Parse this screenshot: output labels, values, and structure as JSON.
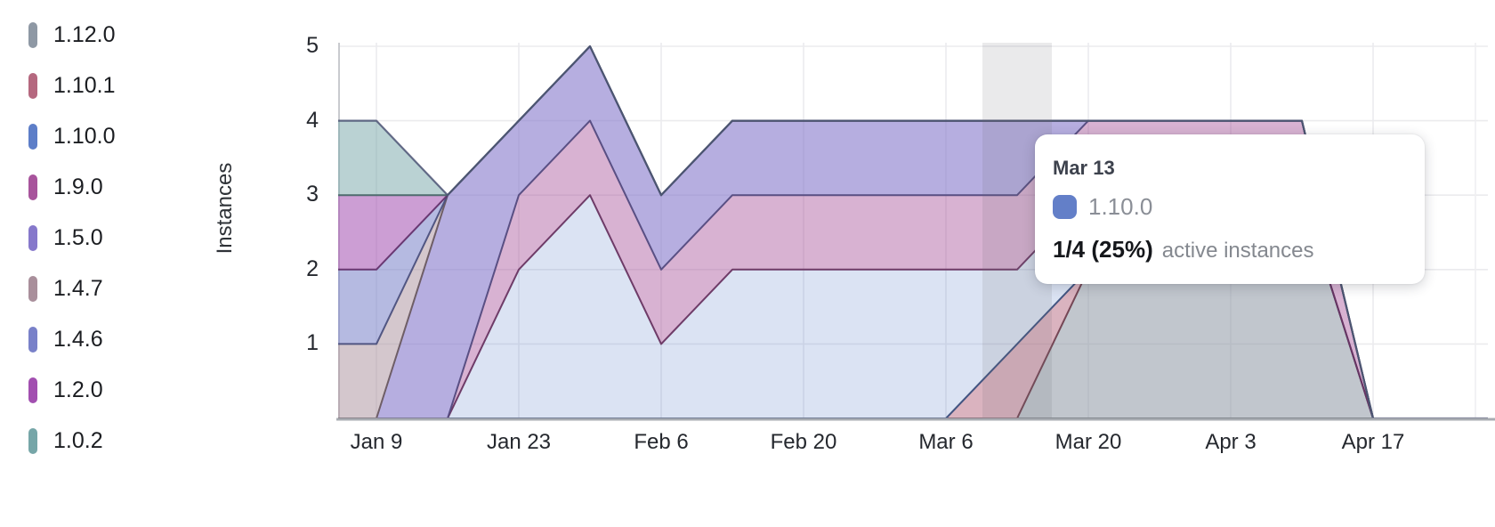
{
  "chart_data": {
    "type": "area",
    "stacked": true,
    "title": "",
    "xlabel": "",
    "ylabel": "Instances",
    "ylim": [
      0,
      5
    ],
    "y_ticks": [
      1,
      2,
      3,
      4,
      5
    ],
    "grid": true,
    "legend_position": "left",
    "x": [
      "Jan 5",
      "Jan 9",
      "Jan 16",
      "Jan 23",
      "Jan 30",
      "Feb 6",
      "Feb 13",
      "Feb 20",
      "Feb 27",
      "Mar 6",
      "Mar 13",
      "Mar 20",
      "Mar 27",
      "Apr 3",
      "Apr 10",
      "Apr 17"
    ],
    "x_tick_labels": [
      "Jan 9",
      "Jan 23",
      "Feb 6",
      "Feb 20",
      "Mar 6",
      "Mar 20",
      "Apr 3",
      "Apr 17"
    ],
    "stack_order_bottom_to_top": [
      "1.12.0",
      "1.10.1",
      "1.10.0",
      "1.9.0",
      "1.5.0",
      "1.4.7",
      "1.4.6",
      "1.2.0",
      "1.0.2"
    ],
    "highlighted_x": "Mar 13",
    "series": [
      {
        "label": "1.12.0",
        "color": "#8e98a4",
        "fill_opacity": 0.55,
        "values": [
          0,
          0,
          0,
          0,
          0,
          0,
          0,
          0,
          0,
          0,
          0,
          2,
          3,
          3,
          3,
          0
        ]
      },
      {
        "label": "1.10.1",
        "color": "#b5687f",
        "fill_opacity": 0.5,
        "values": [
          0,
          0,
          0,
          0,
          0,
          0,
          0,
          0,
          0,
          0,
          1,
          0,
          0,
          0,
          0,
          0
        ]
      },
      {
        "label": "1.10.0",
        "color": "#5d7ec8",
        "fill_opacity": 0.22,
        "values": [
          0,
          0,
          0,
          2,
          3,
          1,
          2,
          2,
          2,
          2,
          1,
          1,
          0,
          0,
          0,
          0
        ]
      },
      {
        "label": "1.9.0",
        "color": "#a8549c",
        "fill_opacity": 0.45,
        "values": [
          0,
          0,
          0,
          1,
          1,
          1,
          1,
          1,
          1,
          1,
          1,
          1,
          1,
          1,
          1,
          0
        ]
      },
      {
        "label": "1.5.0",
        "color": "#8678cb",
        "fill_opacity": 0.6,
        "values": [
          0,
          0,
          3,
          1,
          1,
          1,
          1,
          1,
          1,
          1,
          1,
          0,
          0,
          0,
          0,
          0
        ]
      },
      {
        "label": "1.4.7",
        "color": "#a98f9b",
        "fill_opacity": 0.5,
        "values": [
          1,
          1,
          0,
          0,
          0,
          0,
          0,
          0,
          0,
          0,
          0,
          0,
          0,
          0,
          0,
          0
        ]
      },
      {
        "label": "1.4.6",
        "color": "#7981c9",
        "fill_opacity": 0.55,
        "values": [
          1,
          1,
          0,
          0,
          0,
          0,
          0,
          0,
          0,
          0,
          0,
          0,
          0,
          0,
          0,
          0
        ]
      },
      {
        "label": "1.2.0",
        "color": "#a24fb0",
        "fill_opacity": 0.55,
        "values": [
          1,
          1,
          0,
          0,
          0,
          0,
          0,
          0,
          0,
          0,
          0,
          0,
          0,
          0,
          0,
          0
        ]
      },
      {
        "label": "1.0.2",
        "color": "#76a6a8",
        "fill_opacity": 0.5,
        "values": [
          1,
          1,
          0,
          0,
          0,
          0,
          0,
          0,
          0,
          0,
          0,
          0,
          0,
          0,
          0,
          0
        ]
      }
    ]
  },
  "tooltip": {
    "date": "Mar 13",
    "series_label": "1.10.0",
    "series_color": "#637fc8",
    "value": "1/4 (25%)",
    "value_suffix": "active instances"
  }
}
